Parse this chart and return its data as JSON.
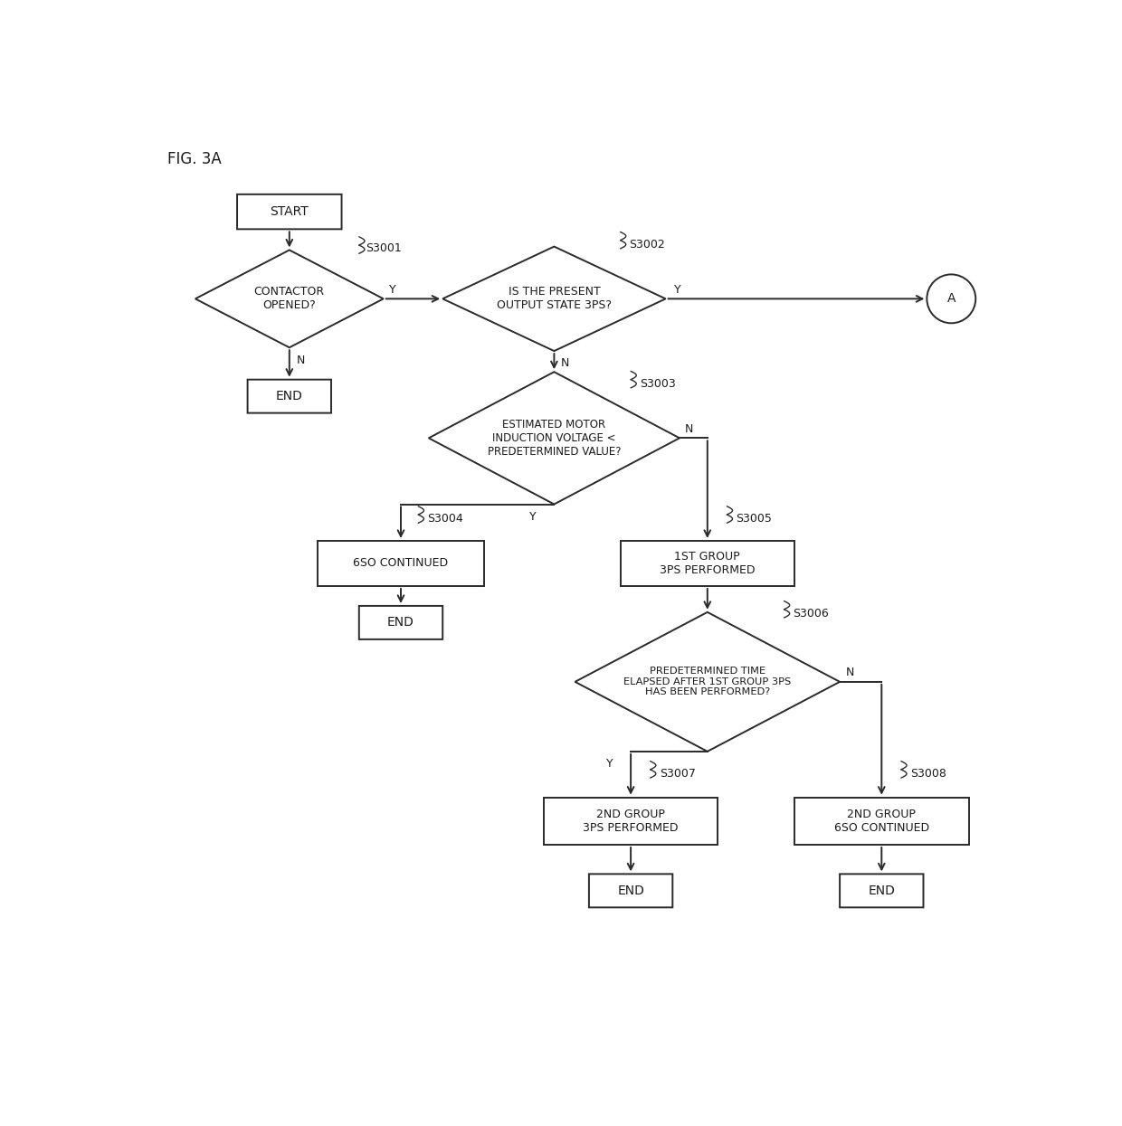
{
  "title": "FIG. 3A",
  "bg_color": "#ffffff",
  "line_color": "#2a2a2a",
  "text_color": "#1a1a1a",
  "figsize": [
    12.4,
    12.45
  ],
  "dpi": 100,
  "xlim": [
    0,
    12.4
  ],
  "ylim": [
    0,
    12.45
  ]
}
